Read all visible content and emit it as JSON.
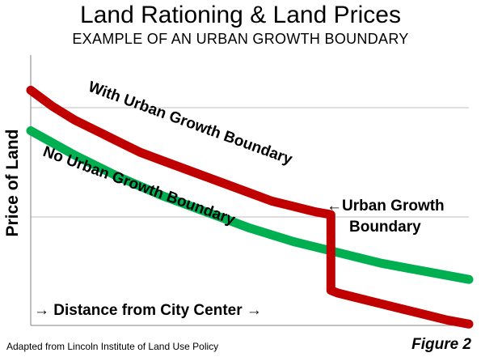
{
  "title": "Land Rationing & Land Prices",
  "subtitle": "EXAMPLE OF AN URBAN GROWTH BOUNDARY",
  "footer": {
    "source": "Adapted from Lincoln Institute of Land Use Policy",
    "figure": "Figure 2"
  },
  "colors": {
    "with_ugb": "#c00000",
    "no_ugb": "#00b050",
    "gridline": "#bfbfbf",
    "axis": "#808080"
  },
  "chart_data": {
    "type": "line",
    "title": "Land Rationing & Land Prices",
    "subtitle": "EXAMPLE OF AN URBAN GROWTH BOUNDARY",
    "xlabel": "→ Distance from City Center →",
    "ylabel": "Price of Land",
    "grid": true,
    "x_ticks_shown": false,
    "y_ticks_shown": false,
    "xlim": [
      0,
      1
    ],
    "ylim": [
      0,
      1
    ],
    "series": [
      {
        "name": "With Urban Growth Boundary",
        "color": "#c00000",
        "x": [
          0,
          0.05,
          0.1,
          0.15,
          0.2,
          0.25,
          0.3,
          0.35,
          0.4,
          0.45,
          0.5,
          0.55,
          0.6,
          0.65,
          0.685,
          0.685,
          0.7,
          0.75,
          0.8,
          0.85,
          0.9,
          0.95,
          1.0
        ],
        "values": [
          0.87,
          0.81,
          0.76,
          0.72,
          0.68,
          0.64,
          0.61,
          0.58,
          0.55,
          0.52,
          0.49,
          0.46,
          0.44,
          0.42,
          0.41,
          0.13,
          0.12,
          0.1,
          0.08,
          0.06,
          0.04,
          0.02,
          0.005
        ]
      },
      {
        "name": "No Urban Growth Boundary",
        "color": "#00b050",
        "x": [
          0,
          0.1,
          0.2,
          0.3,
          0.4,
          0.5,
          0.6,
          0.7,
          0.8,
          0.9,
          1.0
        ],
        "values": [
          0.72,
          0.63,
          0.55,
          0.48,
          0.42,
          0.36,
          0.31,
          0.27,
          0.23,
          0.2,
          0.17
        ]
      }
    ],
    "annotations": [
      {
        "text": "With Urban Growth Boundary"
      },
      {
        "text": "No Urban Growth Boundary"
      },
      {
        "text": "Urban Growth",
        "pointer": "←"
      },
      {
        "text": "Boundary"
      }
    ]
  }
}
